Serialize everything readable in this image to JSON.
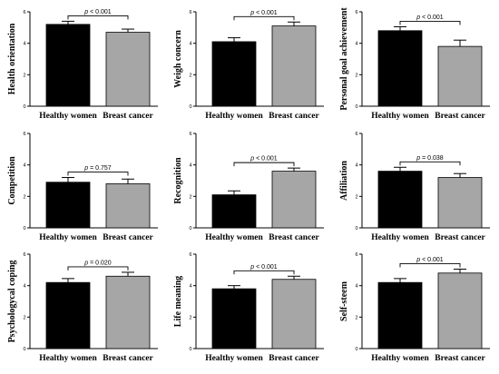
{
  "chart_data": [
    {
      "type": "bar",
      "ylabel": "Health orientation",
      "categories": [
        "Healthy women",
        "Breast cancer"
      ],
      "values": [
        5.2,
        4.7
      ],
      "errors": [
        0.2,
        0.2
      ],
      "ylim": [
        0,
        6
      ],
      "yticks": [
        "0",
        "2",
        "4",
        "6"
      ],
      "annotation": {
        "prefix": "p",
        "text": " < 0.001"
      },
      "colors": [
        "#000000",
        "#a6a6a6"
      ]
    },
    {
      "type": "bar",
      "ylabel": "Weigh concern",
      "categories": [
        "Healthy women",
        "Breast cancer"
      ],
      "values": [
        4.1,
        5.1
      ],
      "errors": [
        0.25,
        0.25
      ],
      "ylim": [
        0,
        6
      ],
      "yticks": [
        "0",
        "2",
        "4",
        "6"
      ],
      "annotation": {
        "prefix": "p",
        "text": " < 0.001"
      },
      "colors": [
        "#000000",
        "#a6a6a6"
      ]
    },
    {
      "type": "bar",
      "ylabel": "Personal goal achievement",
      "categories": [
        "Healthy women",
        "Breast cancer"
      ],
      "values": [
        4.8,
        3.8
      ],
      "errors": [
        0.25,
        0.4
      ],
      "ylim": [
        0,
        6
      ],
      "yticks": [
        "0",
        "2",
        "4",
        "6"
      ],
      "annotation": {
        "prefix": "p",
        "text": " < 0.001"
      },
      "colors": [
        "#000000",
        "#a6a6a6"
      ]
    },
    {
      "type": "bar",
      "ylabel": "Competition",
      "categories": [
        "Healthy women",
        "Breast cancer"
      ],
      "values": [
        2.9,
        2.8
      ],
      "errors": [
        0.3,
        0.3
      ],
      "ylim": [
        0,
        6
      ],
      "yticks": [
        "0",
        "2",
        "4",
        "6"
      ],
      "annotation": {
        "prefix": "p",
        "text": " = 0.757"
      },
      "colors": [
        "#000000",
        "#a6a6a6"
      ]
    },
    {
      "type": "bar",
      "ylabel": "Recognition",
      "categories": [
        "Healthy women",
        "Breast cancer"
      ],
      "values": [
        2.1,
        3.6
      ],
      "errors": [
        0.25,
        0.2
      ],
      "ylim": [
        0,
        6
      ],
      "yticks": [
        "0",
        "2",
        "4",
        "6"
      ],
      "annotation": {
        "prefix": "p",
        "text": " < 0.001"
      },
      "colors": [
        "#000000",
        "#a6a6a6"
      ]
    },
    {
      "type": "bar",
      "ylabel": "Affiliation",
      "categories": [
        "Healthy women",
        "Breast cancer"
      ],
      "values": [
        3.6,
        3.2
      ],
      "errors": [
        0.25,
        0.25
      ],
      "ylim": [
        0,
        6
      ],
      "yticks": [
        "0",
        "2",
        "4",
        "6"
      ],
      "annotation": {
        "prefix": "p",
        "text": " = 0.038"
      },
      "colors": [
        "#000000",
        "#a6a6a6"
      ]
    },
    {
      "type": "bar",
      "ylabel": "Psychologycal coping",
      "categories": [
        "Healthy women",
        "Breast cancer"
      ],
      "values": [
        4.2,
        4.6
      ],
      "errors": [
        0.25,
        0.25
      ],
      "ylim": [
        0,
        6
      ],
      "yticks": [
        "0",
        "2",
        "4",
        "6"
      ],
      "annotation": {
        "prefix": "p",
        "text": " = 0.020"
      },
      "colors": [
        "#000000",
        "#a6a6a6"
      ]
    },
    {
      "type": "bar",
      "ylabel": "Life meaning",
      "categories": [
        "Healthy women",
        "Breast cancer"
      ],
      "values": [
        3.8,
        4.4
      ],
      "errors": [
        0.2,
        0.2
      ],
      "ylim": [
        0,
        6
      ],
      "yticks": [
        "0",
        "2",
        "4",
        "6"
      ],
      "annotation": {
        "prefix": "p",
        "text": " < 0.001"
      },
      "colors": [
        "#000000",
        "#a6a6a6"
      ]
    },
    {
      "type": "bar",
      "ylabel": "Self-steem",
      "categories": [
        "Healthy women",
        "Breast cancer"
      ],
      "values": [
        4.2,
        4.8
      ],
      "errors": [
        0.25,
        0.25
      ],
      "ylim": [
        0,
        6
      ],
      "yticks": [
        "0",
        "2",
        "4",
        "6"
      ],
      "annotation": {
        "prefix": "p",
        "text": " < 0.001"
      },
      "colors": [
        "#000000",
        "#a6a6a6"
      ]
    }
  ]
}
